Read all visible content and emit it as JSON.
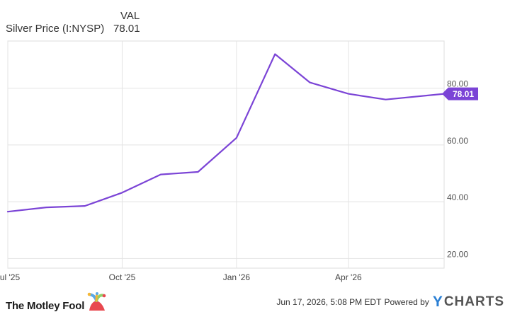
{
  "header": {
    "column_label": "VAL",
    "series_label": "Silver Price (I:NYSP)",
    "series_value": "78.01"
  },
  "chart_data": {
    "type": "line",
    "x": [
      "2025-07-01",
      "2025-08-01",
      "2025-09-01",
      "2025-10-01",
      "2025-11-01",
      "2025-12-01",
      "2026-01-01",
      "2026-02-01",
      "2026-03-01",
      "2026-04-01",
      "2026-05-01",
      "2026-06-17"
    ],
    "series": [
      {
        "name": "Silver Price (I:NYSP)",
        "values": [
          36.5,
          38.0,
          38.5,
          43.2,
          49.6,
          50.5,
          62.5,
          92.0,
          82.0,
          78.0,
          76.0,
          78.01
        ]
      }
    ],
    "x_ticks": [
      {
        "date": "2025-07-01",
        "label": "Jul '25"
      },
      {
        "date": "2025-10-01",
        "label": "Oct '25"
      },
      {
        "date": "2026-01-01",
        "label": "Jan '26"
      },
      {
        "date": "2026-04-01",
        "label": "Apr '26"
      }
    ],
    "y_ticks": [
      "20.00",
      "40.00",
      "60.00",
      "80.00"
    ],
    "ylim": [
      20,
      100
    ],
    "grid": true,
    "last_value_label": "78.01",
    "line_color": "#7b44d6"
  },
  "footer": {
    "brand": "The Motley Fool",
    "timestamp": "Jun 17, 2026, 5:08 PM EDT",
    "powered_by": "Powered by",
    "ycharts_y": "Y",
    "ycharts_rest": "CHARTS"
  }
}
